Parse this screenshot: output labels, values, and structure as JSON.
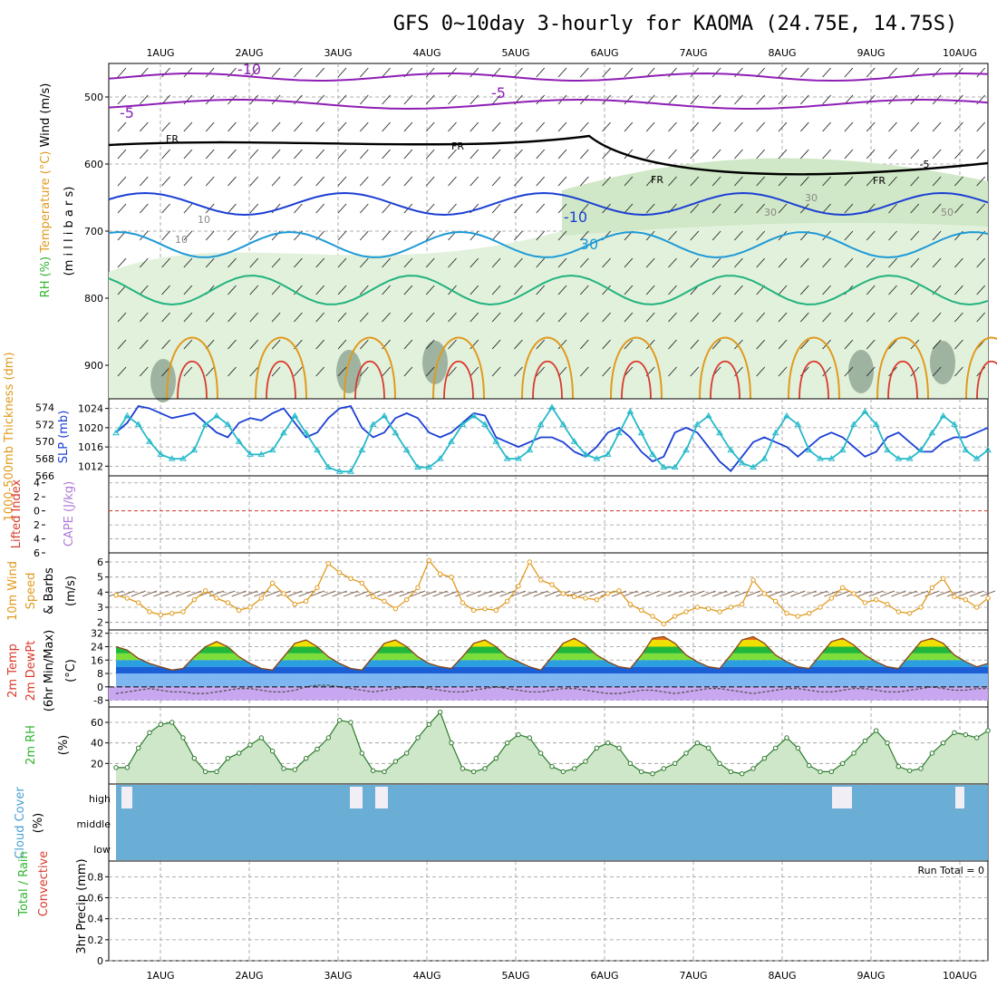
{
  "title": "GFS 0~10day 3-hourly for KAOMA (24.75E, 14.75S)",
  "days": [
    "1AUG",
    "2AUG",
    "3AUG",
    "4AUG",
    "5AUG",
    "6AUG",
    "7AUG",
    "8AUG",
    "9AUG",
    "10AUG"
  ],
  "colors": {
    "purple": "#8e1fb5",
    "blue": "#1b3fd4",
    "lightblue": "#1e9ad6",
    "teal": "#22b37e",
    "orange": "#e09a1e",
    "red": "#d93a2b",
    "magenta": "#cf1f6c",
    "green": "#2fb52f",
    "cyan": "#25b9c9",
    "cloud": "#6aaed6",
    "rhfill": "#cfe7c9"
  },
  "chart_data": [
    {
      "type": "contour",
      "panel": "upper-air",
      "ylabel_parts": [
        "RH (%)",
        "Temperature (°C)",
        "Wind (m/s)"
      ],
      "yunit_label": "(m i l l i b a r s)",
      "yticks": [
        500,
        600,
        700,
        800,
        900
      ],
      "ylim": [
        450,
        950
      ],
      "contour_labels": [
        "-10",
        "-5",
        "-5",
        "FR",
        "FR",
        "FR",
        "FR",
        "-5",
        "-10",
        "30",
        "30",
        "10",
        "10",
        "30",
        "50"
      ]
    },
    {
      "type": "line",
      "panel": "thickness-slp",
      "ylabel_left": "1000-500mb Thickness (dm)",
      "ylabel_right": "SLP (mb)",
      "yticks_left": [
        566,
        568,
        570,
        572,
        574
      ],
      "yticks_right": [
        1012,
        1016,
        1020,
        1024
      ],
      "ylim_left": [
        566,
        575
      ],
      "ylim_right": [
        1010,
        1026
      ],
      "series": [
        {
          "name": "SLP (mb)",
          "color": "#1b3fd4",
          "axis": "right",
          "values": [
            1019,
            1021,
            1024.5,
            1024,
            1023,
            1022,
            1022.5,
            1023,
            1021,
            1019,
            1018,
            1021,
            1022,
            1021.5,
            1023,
            1024,
            1021,
            1018,
            1019,
            1022,
            1024,
            1024.5,
            1020,
            1018,
            1019,
            1022,
            1023,
            1022,
            1019,
            1018,
            1019,
            1021,
            1023,
            1022.5,
            1018,
            1017,
            1016,
            1017,
            1018,
            1018,
            1017,
            1015,
            1014,
            1016,
            1019,
            1020,
            1018,
            1015,
            1013,
            1014,
            1019,
            1020,
            1019,
            1016,
            1013,
            1011,
            1014,
            1017,
            1018,
            1017,
            1016,
            1014,
            1016,
            1018,
            1019,
            1018,
            1016,
            1014,
            1015,
            1018,
            1019,
            1017,
            1015,
            1015,
            1017,
            1018,
            1018,
            1019,
            1020
          ]
        },
        {
          "name": "Thickness (dm)",
          "color": "#25b9c9",
          "axis": "left",
          "values": [
            571,
            573,
            572,
            570,
            568.5,
            568,
            568,
            569,
            572,
            573,
            572,
            570,
            568.5,
            568.5,
            569,
            571,
            573,
            571,
            569,
            567,
            566.5,
            566.5,
            569,
            572,
            573,
            571,
            569,
            567,
            567,
            568,
            570,
            572,
            573,
            572,
            570,
            568,
            568,
            569,
            572,
            574,
            572,
            570,
            568.5,
            568,
            568.5,
            571,
            573.5,
            571,
            568.5,
            567,
            567,
            569,
            572,
            573,
            571,
            569,
            567.5,
            567,
            568,
            571,
            573,
            572,
            569,
            568,
            568,
            569,
            572,
            573.5,
            572,
            569,
            568,
            568,
            569,
            571,
            573,
            572,
            569,
            568,
            569
          ]
        }
      ]
    },
    {
      "type": "line",
      "panel": "lifted-index-cape",
      "ylabel_parts": [
        "Lifted Index",
        "CAPE (J/kg)"
      ],
      "yticks": [
        -4,
        -2,
        0,
        2,
        4,
        6
      ],
      "ytick_labels": [
        "4",
        "2",
        "0",
        "2",
        "4",
        "6"
      ],
      "ylim": [
        -5,
        6
      ],
      "reference_line": 0
    },
    {
      "type": "line",
      "panel": "10m-wind",
      "ylabel_parts": [
        "10m Wind",
        "Speed",
        "& Barbs"
      ],
      "yunit": "(m/s)",
      "yticks": [
        2,
        3,
        4,
        5,
        6
      ],
      "ylim": [
        1.5,
        6.6
      ],
      "series": [
        {
          "name": "Speed",
          "color": "#e09a1e",
          "values": [
            3.8,
            3.6,
            3.3,
            2.7,
            2.5,
            2.6,
            2.7,
            3.5,
            4.1,
            3.6,
            3.3,
            2.8,
            3.0,
            3.6,
            4.6,
            3.9,
            3.2,
            3.4,
            4.3,
            5.9,
            5.3,
            4.9,
            4.6,
            3.7,
            3.4,
            2.9,
            3.5,
            4.3,
            6.1,
            5.2,
            5.0,
            3.3,
            2.8,
            2.9,
            2.8,
            3.4,
            4.4,
            6.0,
            4.8,
            4.5,
            3.9,
            3.7,
            3.6,
            3.5,
            3.9,
            4.1,
            3.2,
            2.8,
            2.4,
            1.9,
            2.4,
            2.7,
            3.0,
            2.9,
            2.7,
            3.0,
            3.2,
            4.8,
            3.9,
            3.4,
            2.6,
            2.4,
            2.6,
            3.0,
            3.6,
            4.3,
            3.9,
            3.3,
            3.5,
            3.2,
            2.7,
            2.6,
            3.0,
            4.3,
            4.9,
            3.7,
            3.5,
            3.0,
            3.6
          ]
        }
      ]
    },
    {
      "type": "area",
      "panel": "2m-temp",
      "ylabel_parts": [
        "2m Temp",
        "2m DewPt",
        "(6hr Min/Max)"
      ],
      "yunit": "(°C)",
      "yticks": [
        -8,
        0,
        8,
        16,
        24,
        32
      ],
      "ytick_labels": [
        "-8",
        "0",
        "8",
        "16",
        "24",
        "32"
      ],
      "ylim": [
        -12,
        34
      ],
      "series": [
        {
          "name": "2m Temp",
          "color": "#8b4513",
          "values": [
            24,
            22,
            17,
            14,
            12,
            10,
            11,
            18,
            24,
            27,
            24,
            18,
            14,
            11,
            10,
            18,
            26,
            28,
            24,
            18,
            14,
            11,
            10,
            18,
            26,
            28,
            24,
            18,
            14,
            12,
            11,
            18,
            26,
            28,
            24,
            18,
            15,
            12,
            10,
            18,
            26,
            29,
            25,
            19,
            15,
            12,
            11,
            19,
            29,
            30,
            26,
            19,
            15,
            12,
            11,
            19,
            28,
            30,
            26,
            19,
            15,
            12,
            11,
            19,
            27,
            29,
            25,
            19,
            15,
            12,
            11,
            19,
            27,
            29,
            26,
            19,
            15,
            12,
            14
          ]
        },
        {
          "name": "2m DewPt",
          "color": "#555555",
          "values": [
            -4,
            -3,
            -2,
            -1,
            -2,
            -3,
            -3,
            -4,
            -4,
            -3,
            -2,
            -1,
            -1,
            -2,
            -3,
            -3,
            -2,
            0,
            1,
            1,
            0,
            -1,
            -2,
            -3,
            -2,
            -1,
            0,
            0,
            -1,
            -2,
            -3,
            -3,
            -2,
            -1,
            0,
            -1,
            -2,
            -3,
            -3,
            -2,
            -1,
            -1,
            -2,
            -3,
            -4,
            -4,
            -3,
            -2,
            -2,
            -3,
            -4,
            -3,
            -2,
            -1,
            -1,
            -2,
            -3,
            -4,
            -3,
            -2,
            -1,
            -1,
            -2,
            -3,
            -3,
            -2,
            -1,
            -1,
            -2,
            -3,
            -3,
            -2,
            -1,
            0,
            -1,
            -2,
            -2,
            -1,
            -1
          ]
        }
      ]
    },
    {
      "type": "area",
      "panel": "2m-rh",
      "ylabel": "2m RH",
      "yunit": "(%)",
      "yticks": [
        20,
        40,
        60
      ],
      "ylim": [
        0,
        75
      ],
      "series": [
        {
          "name": "2m RH",
          "color": "#2fb52f",
          "values": [
            16,
            16,
            35,
            50,
            58,
            60,
            45,
            25,
            12,
            12,
            25,
            30,
            38,
            45,
            32,
            15,
            14,
            25,
            34,
            45,
            62,
            60,
            30,
            13,
            12,
            22,
            30,
            45,
            58,
            70,
            40,
            15,
            12,
            15,
            25,
            40,
            48,
            45,
            30,
            17,
            12,
            15,
            22,
            35,
            40,
            35,
            20,
            12,
            10,
            15,
            20,
            30,
            40,
            35,
            20,
            12,
            10,
            15,
            25,
            35,
            45,
            35,
            18,
            12,
            12,
            20,
            30,
            42,
            52,
            40,
            17,
            13,
            15,
            30,
            40,
            50,
            48,
            45,
            52
          ]
        }
      ]
    },
    {
      "type": "area",
      "panel": "cloud-cover",
      "ylabel": "Cloud Cover",
      "yunit": "(%)",
      "ytick_labels": [
        "high",
        "middle",
        "low"
      ]
    },
    {
      "type": "bar",
      "panel": "precip",
      "ylabel_parts": [
        "Total / Rain",
        "Convective",
        "3hr Precip (mm)"
      ],
      "yticks": [
        0,
        0.2,
        0.4,
        0.6,
        0.8
      ],
      "ytick_labels": [
        "0",
        "0.2",
        "0.4",
        "0.6",
        "0.8"
      ],
      "ylim": [
        0,
        0.95
      ],
      "run_total_label": "Run Total = 0",
      "values": []
    }
  ]
}
